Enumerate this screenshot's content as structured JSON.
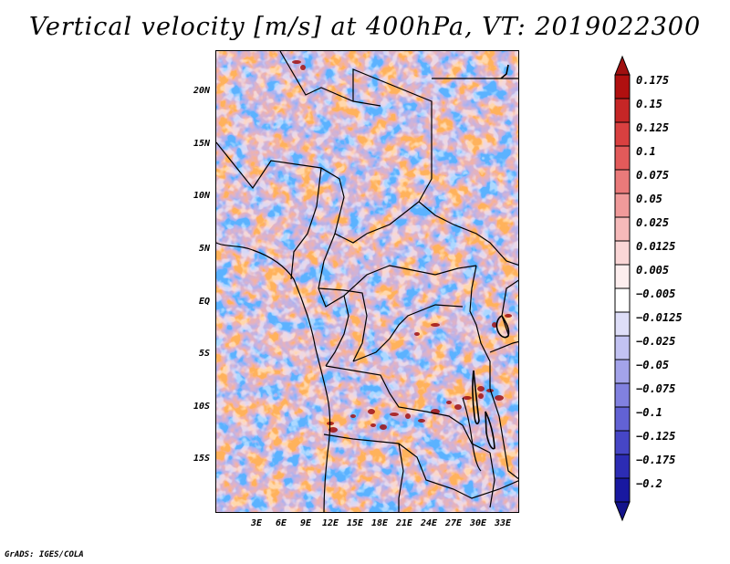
{
  "title": "Vertical velocity [m/s] at 400hPa, VT: 2019022300",
  "footer": "GrADS: IGES/COLA",
  "map": {
    "region": "Central Africa",
    "lat_range": [
      -20,
      24
    ],
    "lon_range": [
      -2,
      35
    ]
  },
  "y_axis": {
    "labels": [
      {
        "text": "20N",
        "lat": 20
      },
      {
        "text": "15N",
        "lat": 15
      },
      {
        "text": "10N",
        "lat": 10
      },
      {
        "text": "5N",
        "lat": 5
      },
      {
        "text": "EQ",
        "lat": 0
      },
      {
        "text": "5S",
        "lat": -5
      },
      {
        "text": "10S",
        "lat": -10
      },
      {
        "text": "15S",
        "lat": -15
      }
    ]
  },
  "x_axis": {
    "labels": [
      {
        "text": "3E",
        "lon": 3
      },
      {
        "text": "6E",
        "lon": 6
      },
      {
        "text": "9E",
        "lon": 9
      },
      {
        "text": "12E",
        "lon": 12
      },
      {
        "text": "15E",
        "lon": 15
      },
      {
        "text": "18E",
        "lon": 18
      },
      {
        "text": "21E",
        "lon": 21
      },
      {
        "text": "24E",
        "lon": 24
      },
      {
        "text": "27E",
        "lon": 27
      },
      {
        "text": "30E",
        "lon": 30
      },
      {
        "text": "33E",
        "lon": 33
      }
    ]
  },
  "colorbar": {
    "levels": [
      {
        "label": "0.175",
        "color": "#b01010"
      },
      {
        "label": "0.15",
        "color": "#c52626"
      },
      {
        "label": "0.125",
        "color": "#d94040"
      },
      {
        "label": "0.1",
        "color": "#e25a5a"
      },
      {
        "label": "0.075",
        "color": "#ea7a7a"
      },
      {
        "label": "0.05",
        "color": "#f09a9a"
      },
      {
        "label": "0.025",
        "color": "#f6baba"
      },
      {
        "label": "0.0125",
        "color": "#fad6d6"
      },
      {
        "label": "0.005",
        "color": "#fdeeee"
      },
      {
        "label": "−0.005",
        "color": "#ffffff"
      },
      {
        "label": "−0.0125",
        "color": "#dedef8"
      },
      {
        "label": "−0.025",
        "color": "#c2c2f2"
      },
      {
        "label": "−0.05",
        "color": "#a3a3ea"
      },
      {
        "label": "−0.075",
        "color": "#8181e0"
      },
      {
        "label": "−0.1",
        "color": "#6262d4"
      },
      {
        "label": "−0.125",
        "color": "#4646c6"
      },
      {
        "label": "−0.175",
        "color": "#2c2cb4"
      },
      {
        "label": "−0.2",
        "color": "#1818a0"
      }
    ],
    "top_color": "#a01010",
    "bottom_color": "#14148c"
  }
}
